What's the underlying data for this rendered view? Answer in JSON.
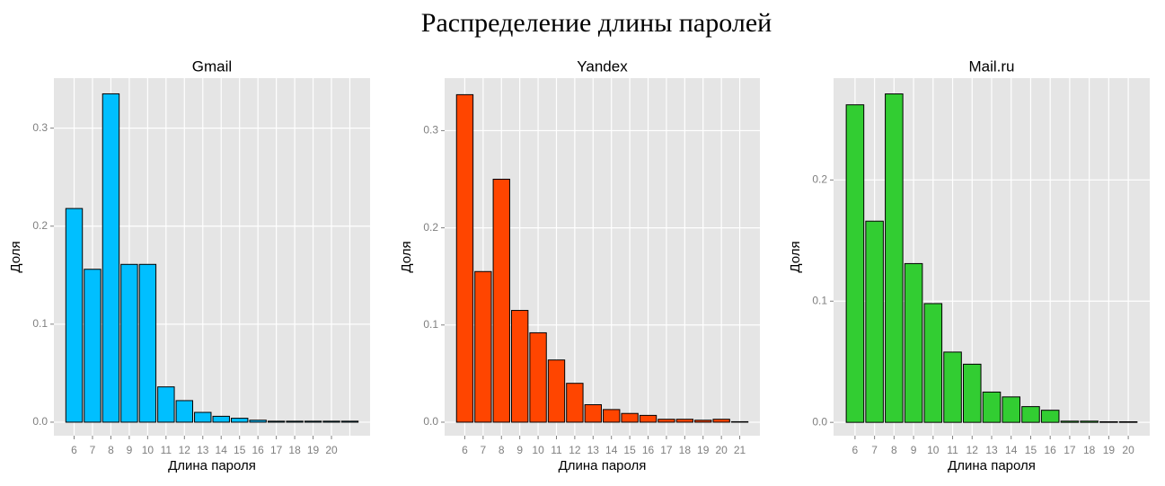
{
  "title": "Распределение длины паролей",
  "chart_data": [
    {
      "type": "bar",
      "title": "Gmail",
      "x_label": "Длина пароля",
      "y_label": "Доля",
      "color": "#00bfff",
      "grid": true,
      "categories": [
        "6",
        "7",
        "8",
        "9",
        "10",
        "11",
        "12",
        "13",
        "14",
        "15",
        "16",
        "17",
        "18",
        "19",
        "20",
        null
      ],
      "values": [
        0.218,
        0.156,
        0.335,
        0.161,
        0.161,
        0.036,
        0.022,
        0.01,
        0.006,
        0.004,
        0.002,
        0.001,
        0.001,
        0.001,
        0.001,
        0.001
      ],
      "ylim": [
        -0.0138,
        0.351
      ],
      "yticks": [
        {
          "value": 0,
          "label": "0.0"
        },
        0.1,
        0.2,
        0.3
      ]
    },
    {
      "type": "bar",
      "title": "Yandex",
      "x_label": "Длина пароля",
      "y_label": "Доля",
      "color": "#ff4500",
      "grid": true,
      "categories": [
        "6",
        "7",
        "8",
        "9",
        "10",
        "11",
        "12",
        "13",
        "14",
        "15",
        "16",
        "17",
        "18",
        "19",
        "20",
        "21"
      ],
      "values": [
        0.337,
        0.155,
        0.25,
        0.115,
        0.092,
        0.064,
        0.04,
        0.018,
        0.013,
        0.009,
        0.007,
        0.003,
        0.003,
        0.002,
        0.003,
        0.0005
      ],
      "ylim": [
        -0.0139,
        0.354
      ],
      "yticks": [
        {
          "value": 0,
          "label": "0.0"
        },
        0.1,
        0.2,
        0.3
      ]
    },
    {
      "type": "bar",
      "title": "Mail.ru",
      "x_label": "Длина пароля",
      "y_label": "Доля",
      "color": "#32cd32",
      "grid": true,
      "categories": [
        "6",
        "7",
        "8",
        "9",
        "10",
        "11",
        "12",
        "13",
        "14",
        "15",
        "16",
        "17",
        "18",
        "19",
        "20"
      ],
      "values": [
        0.262,
        0.166,
        0.271,
        0.131,
        0.098,
        0.058,
        0.048,
        0.025,
        0.021,
        0.013,
        0.01,
        0.001,
        0.001,
        0.0005,
        0.0005
      ],
      "ylim": [
        -0.011,
        0.284
      ],
      "yticks": [
        {
          "value": 0,
          "label": "0.0"
        },
        0.1,
        0.2
      ]
    }
  ]
}
